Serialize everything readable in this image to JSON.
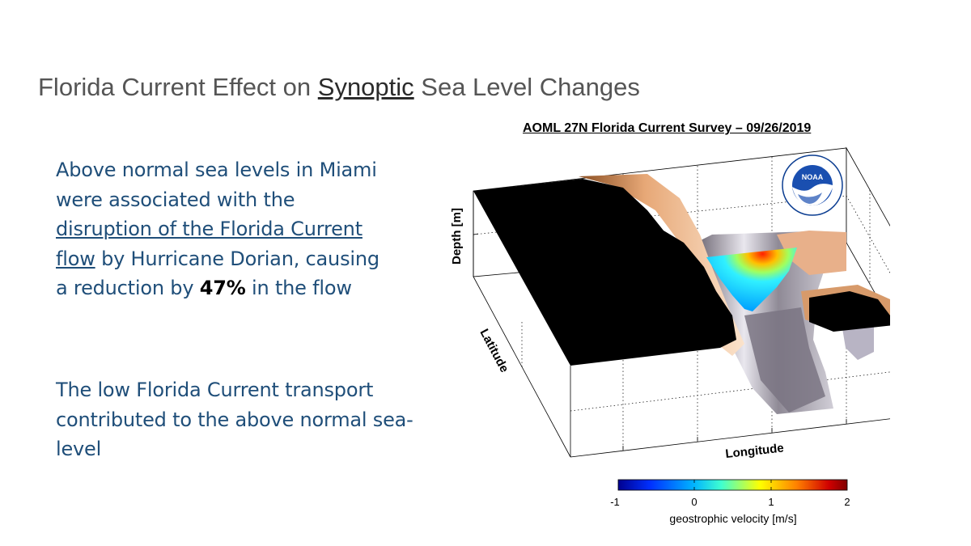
{
  "slide": {
    "title_before": "Florida Current Effect on ",
    "title_underlined": "Synoptic",
    "title_after": " Sea Level Changes"
  },
  "paragraph1": {
    "line1": "Above normal sea levels in Miami",
    "line2": "were associated with the",
    "link_line1": "disruption of the Florida Current",
    "link_line2": "flow",
    "after_link": " by Hurricane Dorian, causing",
    "line5_before": "a reduction by ",
    "percent": "47%",
    "line5_after": " in the flow"
  },
  "paragraph2": {
    "text": "The low Florida Current transport contributed to the above normal sea-level"
  },
  "figure": {
    "title": "AOML 27N Florida Current Survey – 09/26/2019",
    "logo_text": "NOAA",
    "logo_ring_text": "NATIONAL OCEANIC AND ATMOSPHERIC ADMINISTRATION · U.S. DEPARTMENT OF COMMERCE",
    "axes": {
      "depth_label": "Depth [m]",
      "latitude_label": "Latitude",
      "longitude_label": "Longitude"
    },
    "colorbar": {
      "label": "geostrophic velocity [m/s]",
      "ticks": [
        "-1",
        "0",
        "1",
        "2"
      ],
      "range": [
        -1,
        2
      ],
      "colors": [
        "#00008f",
        "#0040ff",
        "#00c0ff",
        "#40ffbf",
        "#ffff00",
        "#ff8000",
        "#c00000",
        "#800000"
      ]
    }
  }
}
